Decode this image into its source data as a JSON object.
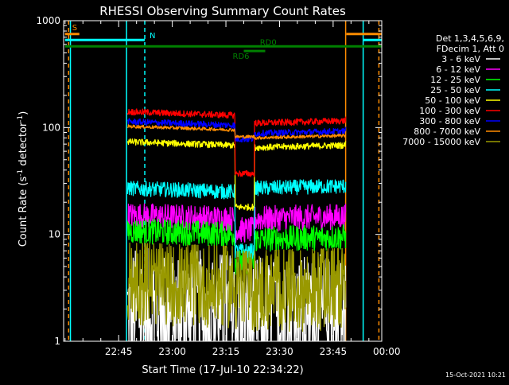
{
  "chart_data": {
    "type": "line",
    "title": "RHESSI Observing Summary Count Rates",
    "xlabel": "Start Time (17-Jul-10 22:34:22)",
    "ylabel_main": "Count Rate (s",
    "ylabel_sup1": "-1",
    "ylabel_mid": " detector",
    "ylabel_sup2": "-1",
    "ylabel_end": ")",
    "yscale": "log",
    "ylim": [
      1,
      1000
    ],
    "xlim_minutes": [
      -30.4,
      58.6
    ],
    "x_unit": "minutes from 23:00",
    "x_tick_labels": [
      "22:45",
      "23:00",
      "23:15",
      "23:30",
      "23:45",
      "00:00"
    ],
    "x_tick_minutes": [
      -15,
      0,
      15,
      30,
      45,
      60
    ],
    "y_tick_labels": [
      "1",
      "10",
      "100",
      "1000"
    ],
    "y_tick_values": [
      1,
      10,
      100,
      1000
    ],
    "timestamp": "15-Oct-2021 10:21",
    "legend_header": [
      "Det 1,3,4,5,6,9,",
      "FDecim 1, Att 0"
    ],
    "series": [
      {
        "name": "3 - 6 keV",
        "color": "#ffffff",
        "level_a": 2.0,
        "level_b": 1.8,
        "noise": 0.55,
        "kind": "spiky"
      },
      {
        "name": "6 - 12 keV",
        "color": "#ff00ff",
        "level_a": 14.0,
        "level_b": 14.0,
        "gap": 11.0,
        "noise": 0.12
      },
      {
        "name": "12 - 25 keV",
        "color": "#00ff00",
        "level_a": 10.0,
        "level_b": 9.0,
        "gap": 5.5,
        "noise": 0.12
      },
      {
        "name": "25 - 50 keV",
        "color": "#00ffff",
        "level_a": 25.0,
        "level_b": 27.0,
        "gap": 7.0,
        "noise": 0.07
      },
      {
        "name": "50 - 100 keV",
        "color": "#ffff00",
        "level_a": 68.0,
        "level_b": 65.0,
        "gap": 18.0,
        "noise": 0.03
      },
      {
        "name": "100 - 300 keV",
        "color": "#ff0000",
        "level_a": 130.0,
        "level_b": 110.0,
        "gap": 37.0,
        "noise": 0.03
      },
      {
        "name": "300 - 800 keV",
        "color": "#0000ff",
        "level_a": 105.0,
        "level_b": 88.0,
        "gap": 78.0,
        "noise": 0.03
      },
      {
        "name": "800 - 7000 keV",
        "color": "#ff8c00",
        "level_a": 95.0,
        "level_b": 80.0,
        "gap": 82.0,
        "noise": 0.015
      },
      {
        "name": "7000 - 15000 keV",
        "color": "#999900",
        "level_a": 3.5,
        "level_b": 3.2,
        "noise": 0.35,
        "kind": "spiky"
      }
    ],
    "data_intervals": [
      {
        "start_min": -12.5,
        "end_min": 17.5,
        "segment": "a"
      },
      {
        "start_min": 17.5,
        "end_min": 23.0,
        "segment": "gap"
      },
      {
        "start_min": 23.0,
        "end_min": 48.5,
        "segment": "b"
      }
    ],
    "flag_bars": [
      {
        "label": "S",
        "color": "#ff8c00",
        "y_value": 750,
        "x_start_min": -30.0,
        "x_end_min": -26.0,
        "kind": "flag-s"
      },
      {
        "label": "N",
        "color": "#00ffff",
        "y_value": 660,
        "x_start_min": -30.0,
        "x_end_min": -7.7,
        "kind": "flag-n"
      },
      {
        "label": "",
        "color": "#ff8c00",
        "y_value": 750,
        "x_start_min": 48.7,
        "x_end_min": 58.5,
        "kind": "flag-s-right"
      },
      {
        "label": "",
        "color": "#00ffff",
        "y_value": 660,
        "x_start_min": 53.4,
        "x_end_min": 58.5,
        "kind": "flag-n-right"
      },
      {
        "label": "RD0",
        "color": "#008000",
        "y_value": 575,
        "x_start_min": -30.0,
        "x_end_min": 58.5,
        "kind": "rd0"
      },
      {
        "label": "RD6",
        "color": "#008000",
        "y_value": 520,
        "x_start_min": 20.0,
        "x_end_min": 26.0,
        "kind": "rd6"
      }
    ],
    "vertical_lines": [
      {
        "x_min": -29.0,
        "color": "#ff8c00",
        "style": "dashed"
      },
      {
        "x_min": -28.5,
        "color": "#00ffff",
        "style": "solid"
      },
      {
        "x_min": -12.8,
        "color": "#00ffff",
        "style": "solid"
      },
      {
        "x_min": -7.7,
        "color": "#00ffff",
        "style": "dashed"
      },
      {
        "x_min": 48.5,
        "color": "#ff8c00",
        "style": "solid"
      },
      {
        "x_min": 53.4,
        "color": "#00ffff",
        "style": "solid"
      },
      {
        "x_min": 57.8,
        "color": "#ff8c00",
        "style": "dashed"
      }
    ]
  }
}
